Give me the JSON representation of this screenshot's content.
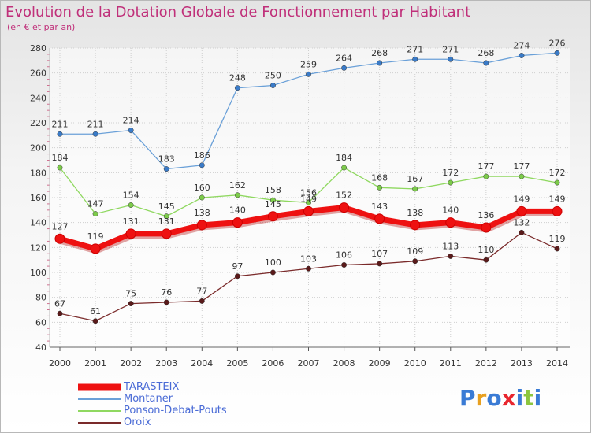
{
  "header": {
    "title": "Evolution de la Dotation Globale de Fonctionnement par Habitant",
    "subtitle": "(en € et par an)"
  },
  "brand": {
    "text": "Proxiti",
    "letters": [
      {
        "ch": "P",
        "color": "#3a7bd5"
      },
      {
        "ch": "r",
        "color": "#e8a020"
      },
      {
        "ch": "o",
        "color": "#3a7bd5"
      },
      {
        "ch": "x",
        "color": "#e8262e"
      },
      {
        "ch": "i",
        "color": "#3a7bd5"
      },
      {
        "ch": "t",
        "color": "#8cc63f"
      },
      {
        "ch": "i",
        "color": "#3a7bd5"
      }
    ]
  },
  "chart_data": {
    "type": "line",
    "x": [
      2000,
      2001,
      2002,
      2003,
      2004,
      2005,
      2006,
      2007,
      2008,
      2009,
      2010,
      2011,
      2012,
      2013,
      2014
    ],
    "ylim": [
      40,
      280
    ],
    "yticks": [
      40,
      60,
      80,
      100,
      120,
      140,
      160,
      180,
      200,
      220,
      240,
      260,
      280
    ],
    "grid": true,
    "legend_position": "bottom-left",
    "series": [
      {
        "name": "TARASTEIX",
        "color": "#ee1111",
        "emphasis": true,
        "values": [
          127,
          119,
          131,
          131,
          138,
          140,
          145,
          149,
          152,
          143,
          138,
          140,
          136,
          149,
          149
        ]
      },
      {
        "name": "Montaner",
        "color": "#6aa0d8",
        "marker": "#3a7bc8",
        "values": [
          211,
          211,
          214,
          183,
          186,
          248,
          250,
          259,
          264,
          268,
          271,
          271,
          268,
          274,
          276
        ]
      },
      {
        "name": "Ponson-Debat-Pouts",
        "color": "#8fd860",
        "marker": "#7ccb4a",
        "values": [
          184,
          147,
          154,
          145,
          160,
          162,
          158,
          156,
          184,
          168,
          167,
          172,
          177,
          177,
          172
        ]
      },
      {
        "name": "Oroix",
        "color": "#7a2a2a",
        "marker": "#5a1a1a",
        "values": [
          67,
          61,
          75,
          76,
          77,
          97,
          100,
          103,
          106,
          107,
          109,
          113,
          110,
          132,
          119
        ]
      }
    ]
  }
}
